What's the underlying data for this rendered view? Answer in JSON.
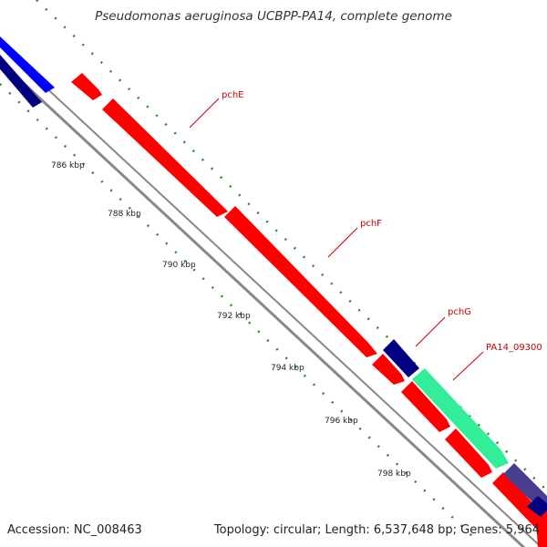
{
  "header": {
    "title": "Pseudomonas aeruginosa UCBPP-PA14, complete genome"
  },
  "footer": {
    "accession": "Accession: NC_008463",
    "summary": "Topology: circular; Length: 6,537,648 bp; Genes: 5,964"
  },
  "ticks": [
    "786 kbp",
    "788 kbp",
    "790 kbp",
    "792 kbp",
    "794 kbp",
    "796 kbp",
    "798 kbp"
  ],
  "genes": [
    {
      "name": "pchE",
      "color": "#ff0000"
    },
    {
      "name": "pchF",
      "color": "#ff0000"
    },
    {
      "name": "pchG",
      "color": "#000080"
    },
    {
      "name": "PA14_09300",
      "color": "#33ee99"
    }
  ],
  "colors": {
    "forward": "#ff0000",
    "reverse_blue": "#0000ff",
    "navy": "#000080",
    "aqua": "#33ee99",
    "slate": "#4a3f8f",
    "backbone": "#888888",
    "ruler": "#228b22"
  }
}
